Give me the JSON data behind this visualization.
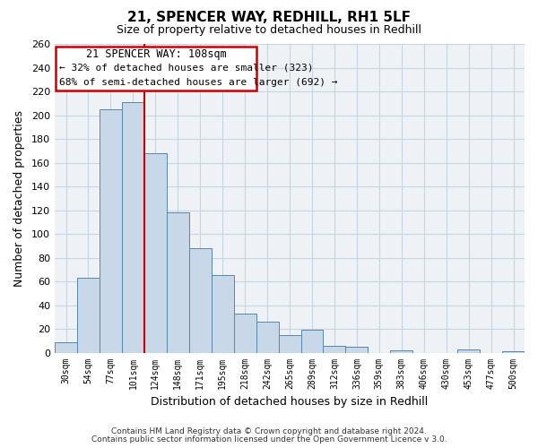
{
  "title": "21, SPENCER WAY, REDHILL, RH1 5LF",
  "subtitle": "Size of property relative to detached houses in Redhill",
  "xlabel": "Distribution of detached houses by size in Redhill",
  "ylabel": "Number of detached properties",
  "bin_labels": [
    "30sqm",
    "54sqm",
    "77sqm",
    "101sqm",
    "124sqm",
    "148sqm",
    "171sqm",
    "195sqm",
    "218sqm",
    "242sqm",
    "265sqm",
    "289sqm",
    "312sqm",
    "336sqm",
    "359sqm",
    "383sqm",
    "406sqm",
    "430sqm",
    "453sqm",
    "477sqm",
    "500sqm"
  ],
  "bar_heights": [
    9,
    63,
    205,
    211,
    168,
    118,
    88,
    65,
    33,
    26,
    15,
    19,
    6,
    5,
    0,
    2,
    0,
    0,
    3,
    0,
    1
  ],
  "bar_color": "#c8d8e8",
  "bar_edge_color": "#5588aa",
  "grid_color": "#c8d4e0",
  "background_color": "#eef2f7",
  "vline_x_index": 3,
  "vline_color": "#cc0000",
  "annotation_title": "21 SPENCER WAY: 108sqm",
  "annotation_line1": "← 32% of detached houses are smaller (323)",
  "annotation_line2": "68% of semi-detached houses are larger (692) →",
  "annotation_box_color": "#cc0000",
  "ylim": [
    0,
    260
  ],
  "yticks": [
    0,
    20,
    40,
    60,
    80,
    100,
    120,
    140,
    160,
    180,
    200,
    220,
    240,
    260
  ],
  "footer1": "Contains HM Land Registry data © Crown copyright and database right 2024.",
  "footer2": "Contains public sector information licensed under the Open Government Licence v 3.0."
}
